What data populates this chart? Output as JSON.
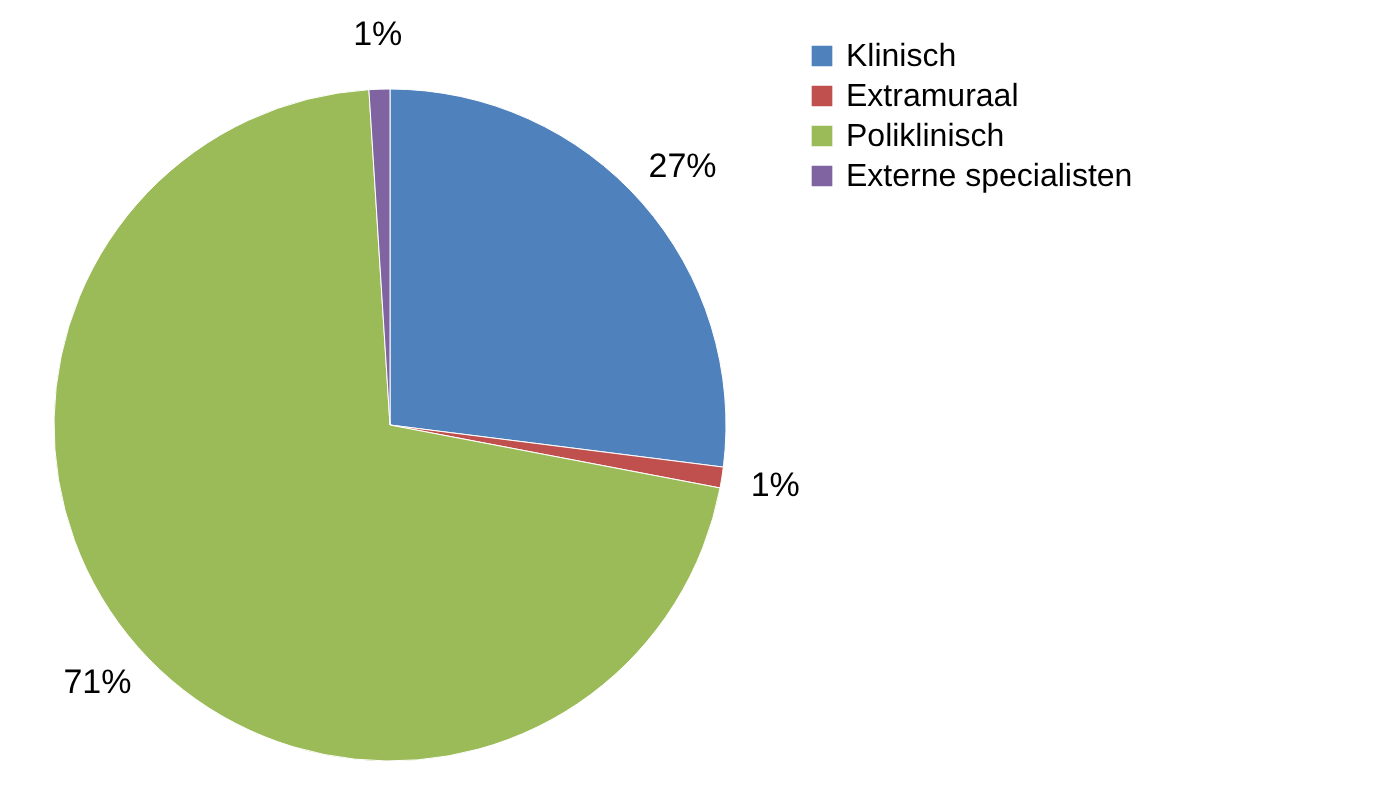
{
  "chart_data": {
    "type": "pie",
    "categories": [
      "Klinisch",
      "Extramuraal",
      "Poliklinisch",
      "Externe specialisten"
    ],
    "values": [
      27,
      1,
      71,
      1
    ],
    "colors": [
      "#4f81bd",
      "#c0504d",
      "#9bbb59",
      "#8064a2"
    ],
    "value_labels": [
      "27%",
      "1%",
      "71%",
      "1%"
    ],
    "legend": "right"
  }
}
